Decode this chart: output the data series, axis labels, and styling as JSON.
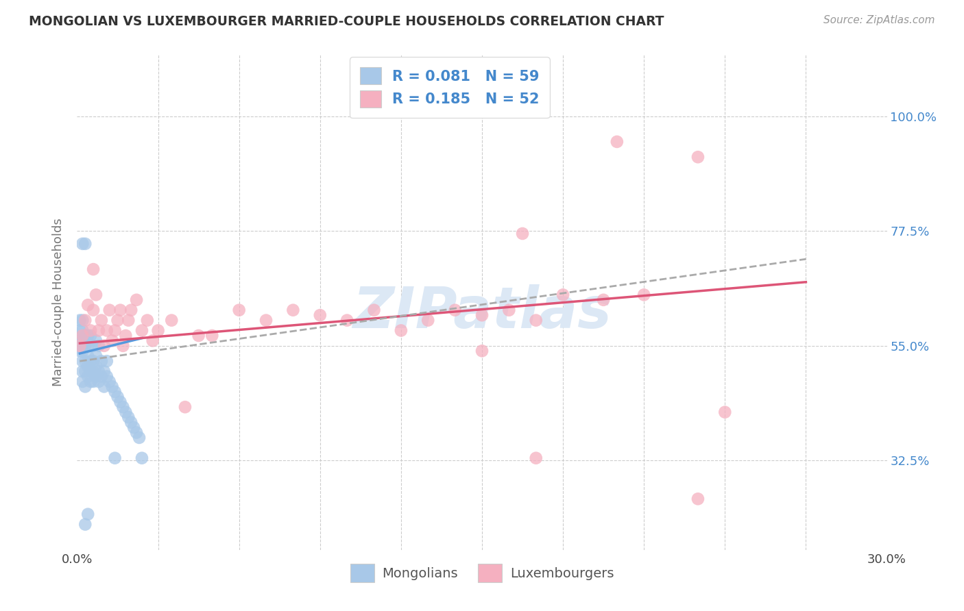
{
  "title": "MONGOLIAN VS LUXEMBOURGER MARRIED-COUPLE HOUSEHOLDS CORRELATION CHART",
  "source": "Source: ZipAtlas.com",
  "ylabel": "Married-couple Households",
  "xlim": [
    0.0,
    0.3
  ],
  "ylim": [
    0.15,
    1.12
  ],
  "ytick_vals": [
    0.325,
    0.55,
    0.775,
    1.0
  ],
  "ytick_labels": [
    "32.5%",
    "55.0%",
    "77.5%",
    "100.0%"
  ],
  "xtick_vals": [
    0.0,
    0.03,
    0.06,
    0.09,
    0.12,
    0.15,
    0.18,
    0.21,
    0.24,
    0.27,
    0.3
  ],
  "xtick_labels": [
    "0.0%",
    "",
    "",
    "",
    "",
    "",
    "",
    "",
    "",
    "",
    "30.0%"
  ],
  "background_color": "#ffffff",
  "mongolians_color": "#a8c8e8",
  "luxembourgers_color": "#f5b0c0",
  "mongolians_line_color": "#5599dd",
  "luxembourgers_line_color": "#dd5577",
  "dash_line_color": "#aaaaaa",
  "legend_text_color": "#4488cc",
  "watermark_color": "#dce8f5",
  "mongo_x": [
    0.001,
    0.001,
    0.001,
    0.001,
    0.002,
    0.002,
    0.002,
    0.002,
    0.002,
    0.002,
    0.002,
    0.002,
    0.003,
    0.003,
    0.003,
    0.003,
    0.003,
    0.003,
    0.004,
    0.004,
    0.004,
    0.004,
    0.004,
    0.005,
    0.005,
    0.005,
    0.005,
    0.006,
    0.006,
    0.006,
    0.006,
    0.007,
    0.007,
    0.007,
    0.007,
    0.008,
    0.008,
    0.008,
    0.009,
    0.009,
    0.01,
    0.01,
    0.011,
    0.011,
    0.012,
    0.013,
    0.014,
    0.015,
    0.016,
    0.017,
    0.018,
    0.019,
    0.02,
    0.021,
    0.022,
    0.023,
    0.024,
    0.004,
    0.014,
    0.003
  ],
  "mongo_y": [
    0.54,
    0.56,
    0.58,
    0.6,
    0.48,
    0.5,
    0.52,
    0.54,
    0.56,
    0.58,
    0.6,
    0.75,
    0.47,
    0.5,
    0.52,
    0.55,
    0.57,
    0.75,
    0.49,
    0.51,
    0.53,
    0.55,
    0.57,
    0.48,
    0.5,
    0.52,
    0.57,
    0.48,
    0.5,
    0.52,
    0.55,
    0.49,
    0.51,
    0.53,
    0.56,
    0.48,
    0.5,
    0.55,
    0.49,
    0.52,
    0.47,
    0.5,
    0.49,
    0.52,
    0.48,
    0.47,
    0.46,
    0.45,
    0.44,
    0.43,
    0.42,
    0.41,
    0.4,
    0.39,
    0.38,
    0.37,
    0.33,
    0.22,
    0.33,
    0.2
  ],
  "luxem_x": [
    0.001,
    0.002,
    0.003,
    0.004,
    0.005,
    0.006,
    0.006,
    0.007,
    0.008,
    0.009,
    0.01,
    0.011,
    0.012,
    0.013,
    0.014,
    0.015,
    0.016,
    0.017,
    0.018,
    0.019,
    0.02,
    0.022,
    0.024,
    0.026,
    0.028,
    0.03,
    0.035,
    0.04,
    0.045,
    0.05,
    0.06,
    0.07,
    0.08,
    0.09,
    0.1,
    0.11,
    0.12,
    0.13,
    0.14,
    0.15,
    0.16,
    0.165,
    0.17,
    0.18,
    0.195,
    0.2,
    0.21,
    0.23,
    0.24,
    0.15,
    0.17,
    0.23
  ],
  "luxem_y": [
    0.55,
    0.57,
    0.6,
    0.63,
    0.58,
    0.62,
    0.7,
    0.65,
    0.58,
    0.6,
    0.55,
    0.58,
    0.62,
    0.56,
    0.58,
    0.6,
    0.62,
    0.55,
    0.57,
    0.6,
    0.62,
    0.64,
    0.58,
    0.6,
    0.56,
    0.58,
    0.6,
    0.43,
    0.57,
    0.57,
    0.62,
    0.6,
    0.62,
    0.61,
    0.6,
    0.62,
    0.58,
    0.6,
    0.62,
    0.61,
    0.62,
    0.77,
    0.6,
    0.65,
    0.64,
    0.95,
    0.65,
    0.92,
    0.42,
    0.54,
    0.33,
    0.25
  ],
  "mongo_line_x": [
    0.001,
    0.024
  ],
  "mongo_line_y": [
    0.535,
    0.565
  ],
  "luxem_line_x": [
    0.001,
    0.27
  ],
  "luxem_line_y": [
    0.555,
    0.675
  ],
  "dash_line_x": [
    0.001,
    0.27
  ],
  "dash_line_y": [
    0.52,
    0.72
  ]
}
